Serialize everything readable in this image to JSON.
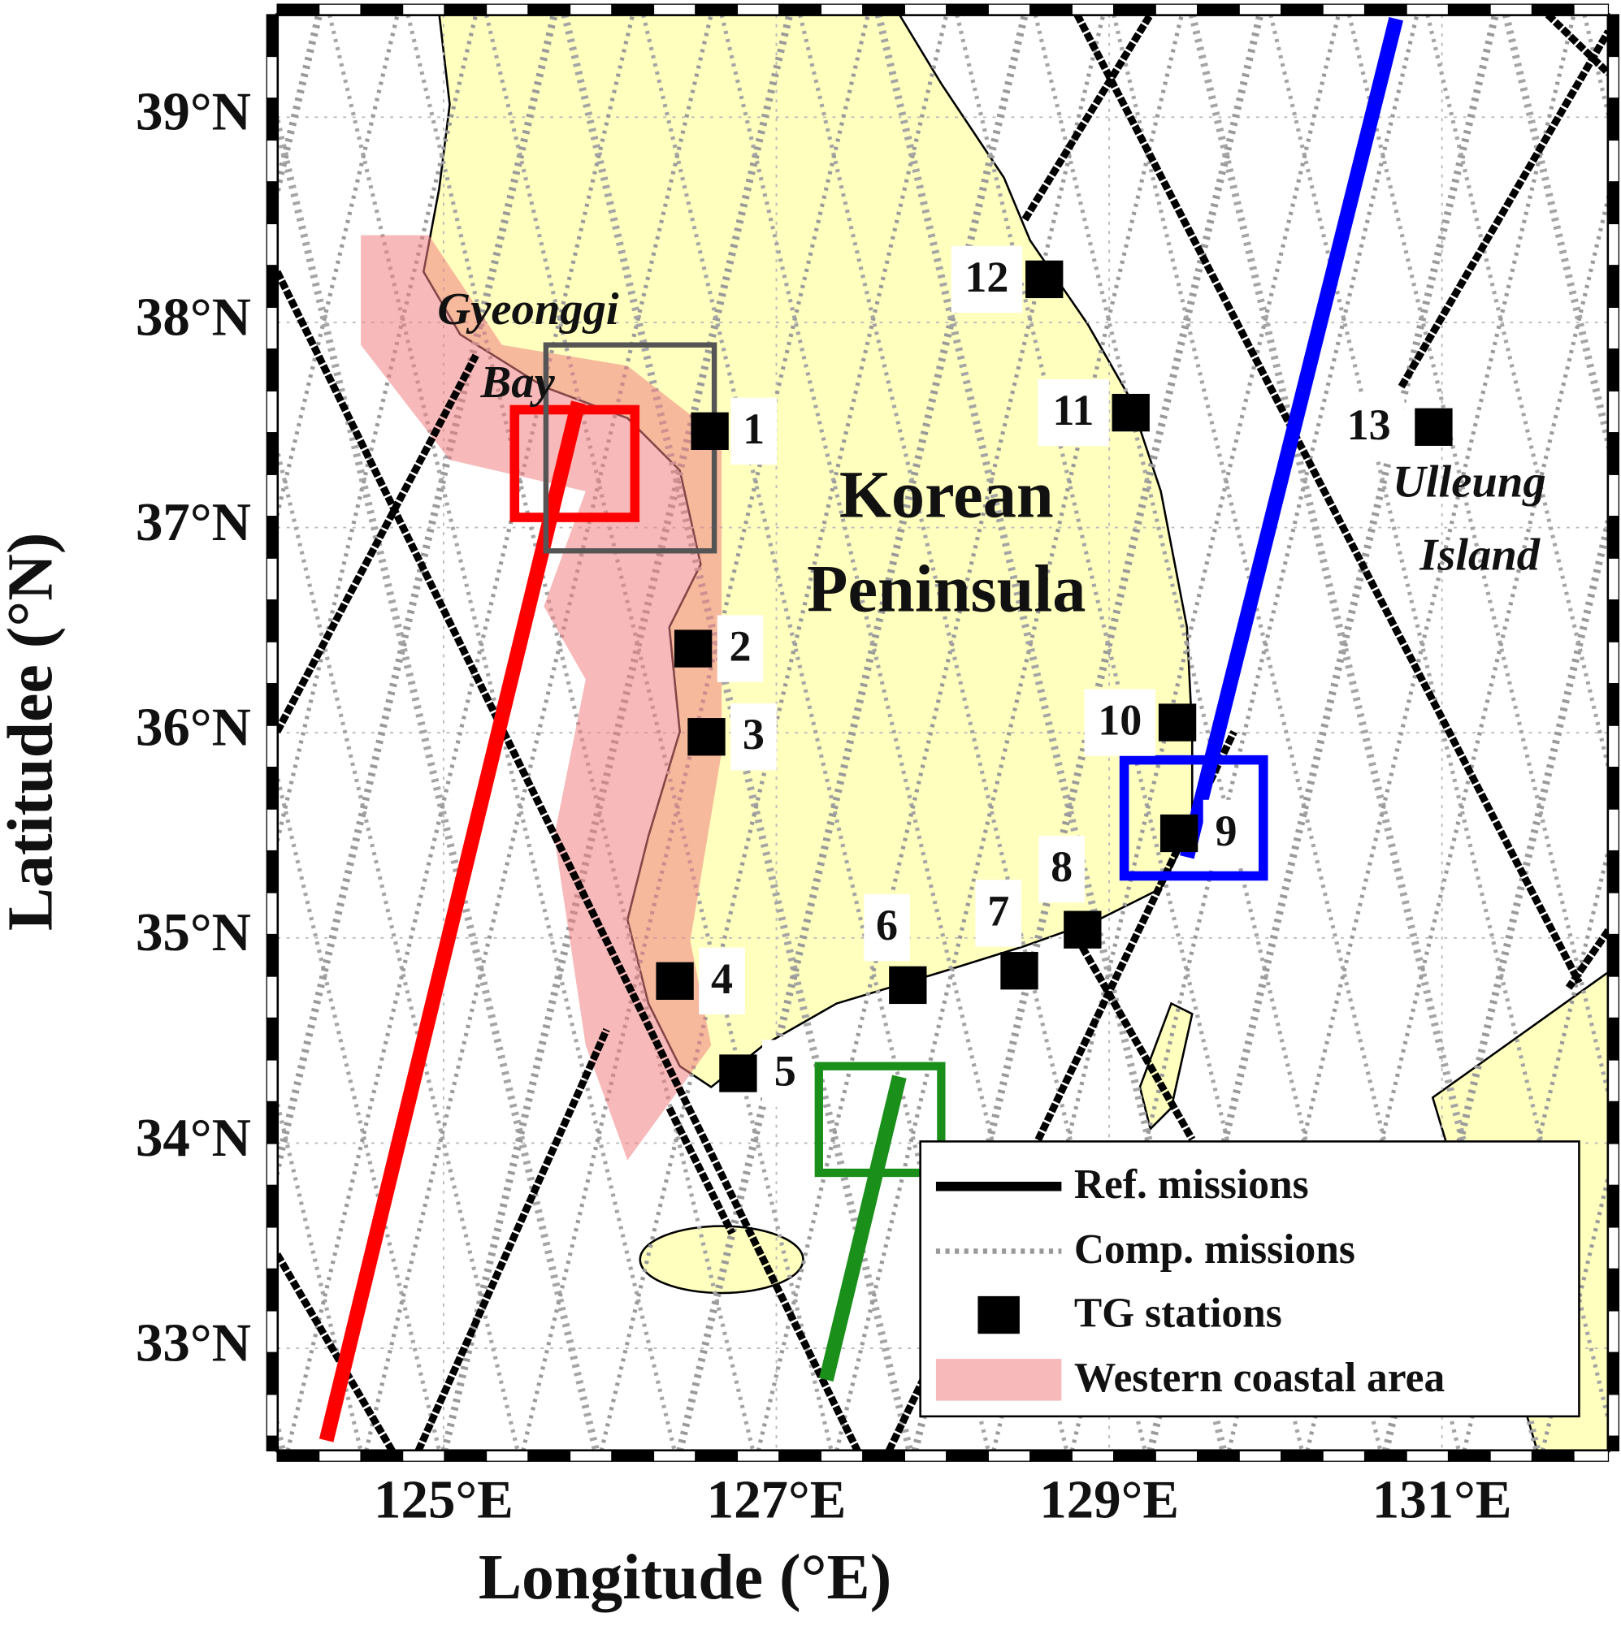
{
  "map": {
    "x_axis_label": "Longitude (°E)",
    "y_axis_label": "Latitudee (°N)",
    "xlim": [
      124,
      132
    ],
    "ylim": [
      32.5,
      39.5
    ],
    "xticks": [
      {
        "value": 125,
        "label": "125°E"
      },
      {
        "value": 127,
        "label": "127°E"
      },
      {
        "value": 129,
        "label": "129°E"
      },
      {
        "value": 131,
        "label": "131°E"
      }
    ],
    "yticks": [
      {
        "value": 33,
        "label": "33°N"
      },
      {
        "value": 34,
        "label": "34°N"
      },
      {
        "value": 35,
        "label": "35°N"
      },
      {
        "value": 36,
        "label": "36°N"
      },
      {
        "value": 37,
        "label": "37°N"
      },
      {
        "value": 38,
        "label": "38°N"
      },
      {
        "value": 39,
        "label": "39°N"
      }
    ],
    "places": [
      {
        "lines": [
          "Gyeonggi",
          "Bay"
        ]
      },
      {
        "lines": [
          "Korean",
          "Peninsula"
        ]
      },
      {
        "lines": [
          "Ulleung",
          "Island"
        ]
      }
    ],
    "stations": [
      {
        "label": "1",
        "lon": 126.6,
        "lat": 37.47
      },
      {
        "label": "2",
        "lon": 126.5,
        "lat": 36.41
      },
      {
        "label": "3",
        "lon": 126.58,
        "lat": 35.98
      },
      {
        "label": "4",
        "lon": 126.39,
        "lat": 34.79
      },
      {
        "label": "5",
        "lon": 126.77,
        "lat": 34.34
      },
      {
        "label": "6",
        "lon": 127.79,
        "lat": 34.77
      },
      {
        "label": "7",
        "lon": 128.46,
        "lat": 34.84
      },
      {
        "label": "8",
        "lon": 128.84,
        "lat": 35.04
      },
      {
        "label": "9",
        "lon": 129.42,
        "lat": 35.51
      },
      {
        "label": "10",
        "lon": 129.41,
        "lat": 36.05
      },
      {
        "label": "11",
        "lon": 129.13,
        "lat": 37.56
      },
      {
        "label": "12",
        "lon": 128.61,
        "lat": 38.21
      },
      {
        "label": "13",
        "lon": 130.95,
        "lat": 37.49
      }
    ],
    "legend": [
      "Ref. missions",
      "Comp. missions",
      "TG stations",
      "Western coastal area"
    ]
  }
}
